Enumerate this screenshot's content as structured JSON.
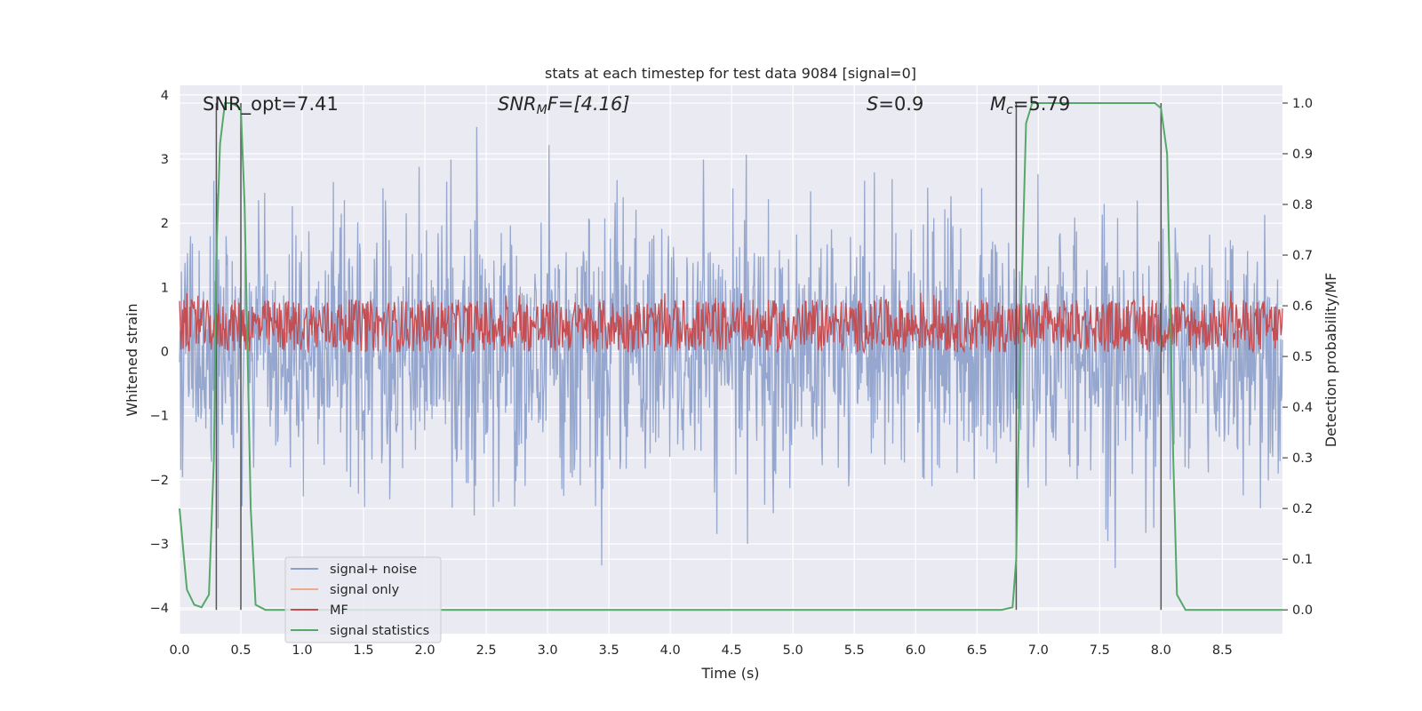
{
  "chart_data": {
    "type": "line",
    "title": "stats at each timestep for test data 9084 [signal=0]",
    "xlabel": "Time (s)",
    "ylabel": "Whitened strain",
    "y2label": "Detection probability/MF",
    "xlim": [
      0,
      8.99
    ],
    "ylim": [
      -4.4,
      4.15
    ],
    "y2lim": [
      -0.047,
      1.035
    ],
    "grid": true,
    "legend_position": "lower-left",
    "x_ticks": [
      "0.0",
      "0.5",
      "1.0",
      "1.5",
      "2.0",
      "2.5",
      "3.0",
      "3.5",
      "4.0",
      "4.5",
      "5.0",
      "5.5",
      "6.0",
      "6.5",
      "7.0",
      "7.5",
      "8.0",
      "8.5"
    ],
    "y_ticks": [
      "−4",
      "−3",
      "−2",
      "−1",
      "0",
      "1",
      "2",
      "3",
      "4"
    ],
    "y2_ticks": [
      "0.0",
      "0.1",
      "0.2",
      "0.3",
      "0.4",
      "0.5",
      "0.6",
      "0.7",
      "0.8",
      "0.9",
      "1.0"
    ],
    "annotations": {
      "snr_opt": "SNR_opt=7.41",
      "snr_mf_sym": "SNR",
      "snr_mf_sub": "M",
      "snr_mf_rest": "F=[4.16]",
      "s_sym": "S",
      "s_rest": "=0.9",
      "mc_sym": "M",
      "mc_sub": "c",
      "mc_rest": "=5.79"
    },
    "vertical_lines": [
      0.3,
      0.5,
      6.82,
      8.0
    ],
    "series": [
      {
        "name": "signal+ noise",
        "axis": "left",
        "color": "#8da0cb",
        "envelope": {
          "x": [
            0,
            8.99
          ],
          "upper_typical": 1.3,
          "lower_typical": -1.3,
          "max": 3.5,
          "min": -3.95
        }
      },
      {
        "name": "signal only",
        "axis": "left",
        "color": "#f1a98b",
        "values": []
      },
      {
        "name": "MF",
        "axis": "right",
        "color": "#c44e52",
        "band": {
          "x": [
            0,
            8.99
          ],
          "center": 0.56,
          "upper": 0.6,
          "lower": 0.52,
          "peaks": [
            0.63,
            0.62
          ]
        }
      },
      {
        "name": "signal statistics",
        "axis": "right",
        "color": "#55a868",
        "x": [
          0.0,
          0.03,
          0.06,
          0.12,
          0.18,
          0.24,
          0.28,
          0.3,
          0.33,
          0.37,
          0.42,
          0.5,
          0.53,
          0.58,
          0.62,
          0.7,
          1.0,
          2.0,
          3.0,
          4.0,
          5.0,
          6.0,
          6.7,
          6.79,
          6.82,
          6.86,
          6.9,
          6.95,
          7.0,
          7.5,
          7.95,
          8.0,
          8.05,
          8.1,
          8.13,
          8.2,
          8.3,
          8.99
        ],
        "values": [
          0.2,
          0.12,
          0.04,
          0.01,
          0.005,
          0.03,
          0.3,
          0.7,
          0.92,
          1.0,
          1.0,
          0.99,
          0.8,
          0.2,
          0.01,
          0.0,
          0.0,
          0.0,
          0.0,
          0.0,
          0.0,
          0.0,
          0.0,
          0.005,
          0.1,
          0.6,
          0.96,
          1.0,
          1.0,
          1.0,
          1.0,
          0.99,
          0.9,
          0.3,
          0.03,
          0.0,
          0.0,
          0.0
        ]
      }
    ]
  }
}
